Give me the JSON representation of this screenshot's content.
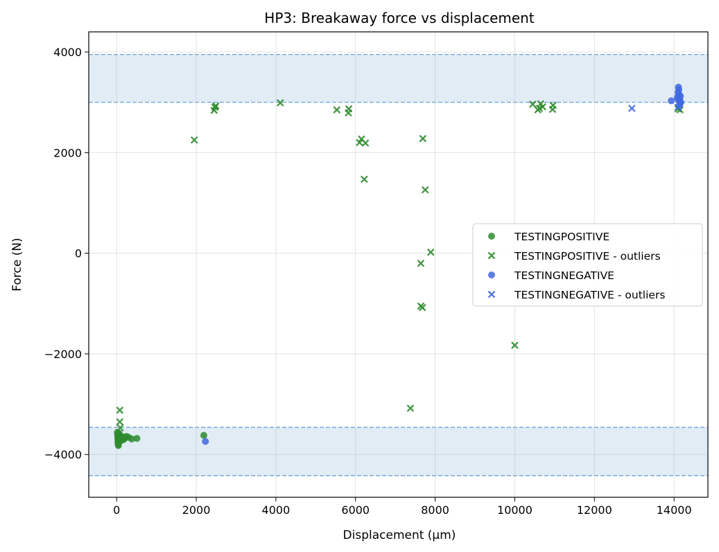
{
  "chart_data": {
    "type": "scatter",
    "title": "HP3: Breakaway force vs displacement",
    "xlabel": "Displacement (µm)",
    "ylabel": "Force (N)",
    "xlim": [
      -700,
      14850
    ],
    "ylim": [
      -4850,
      4400
    ],
    "xticks": [
      0,
      2000,
      4000,
      6000,
      8000,
      10000,
      12000,
      14000
    ],
    "yticks": [
      -4000,
      -2000,
      0,
      2000,
      4000
    ],
    "xtick_labels": [
      "0",
      "2000",
      "4000",
      "6000",
      "8000",
      "10000",
      "12000",
      "14000"
    ],
    "ytick_labels": [
      "−4000",
      "−2000",
      "0",
      "2000",
      "4000"
    ],
    "grid": true,
    "legend_position": "center-right",
    "bands": [
      {
        "lower": 3000,
        "upper": 3950,
        "color": "#cde0ee"
      },
      {
        "lower": -4420,
        "upper": -3460,
        "color": "#cde0ee"
      }
    ],
    "series": [
      {
        "name": "TESTINGPOSITIVE",
        "marker": "circle",
        "color": "#2e8b2e",
        "points": [
          [
            20,
            -3560
          ],
          [
            25,
            -3600
          ],
          [
            30,
            -3640
          ],
          [
            30,
            -3680
          ],
          [
            35,
            -3720
          ],
          [
            35,
            -3760
          ],
          [
            40,
            -3800
          ],
          [
            45,
            -3820
          ],
          [
            50,
            -3700
          ],
          [
            55,
            -3660
          ],
          [
            60,
            -3620
          ],
          [
            65,
            -3580
          ],
          [
            70,
            -3740
          ],
          [
            80,
            -3700
          ],
          [
            90,
            -3660
          ],
          [
            100,
            -3690
          ],
          [
            110,
            -3640
          ],
          [
            120,
            -3720
          ],
          [
            140,
            -3680
          ],
          [
            160,
            -3650
          ],
          [
            180,
            -3700
          ],
          [
            210,
            -3670
          ],
          [
            250,
            -3640
          ],
          [
            300,
            -3660
          ],
          [
            380,
            -3690
          ],
          [
            510,
            -3680
          ],
          [
            2190,
            -3620
          ]
        ]
      },
      {
        "name": "TESTINGPOSITIVE - outliers",
        "marker": "x",
        "color": "#2e8b2e",
        "points": [
          [
            80,
            -3120
          ],
          [
            80,
            -3350
          ],
          [
            90,
            -3470
          ],
          [
            1950,
            2250
          ],
          [
            2450,
            2840
          ],
          [
            2470,
            2900
          ],
          [
            2490,
            2930
          ],
          [
            4110,
            2990
          ],
          [
            5530,
            2850
          ],
          [
            5820,
            2790
          ],
          [
            5830,
            2870
          ],
          [
            6100,
            2200
          ],
          [
            6150,
            2270
          ],
          [
            6250,
            2190
          ],
          [
            6220,
            1470
          ],
          [
            7380,
            -3080
          ],
          [
            7640,
            -200
          ],
          [
            7640,
            -1050
          ],
          [
            7680,
            -1080
          ],
          [
            7690,
            2280
          ],
          [
            7750,
            1260
          ],
          [
            7890,
            20
          ],
          [
            10000,
            -1830
          ],
          [
            10450,
            2960
          ],
          [
            10580,
            2850
          ],
          [
            10620,
            2880
          ],
          [
            10650,
            2970
          ],
          [
            10700,
            2910
          ],
          [
            10950,
            2860
          ],
          [
            10960,
            2940
          ],
          [
            14100,
            2870
          ],
          [
            14150,
            2850
          ]
        ]
      },
      {
        "name": "TESTINGNEGATIVE",
        "marker": "circle",
        "color": "#4169e1",
        "points": [
          [
            2230,
            -3740
          ],
          [
            13930,
            3030
          ],
          [
            14080,
            3100
          ],
          [
            14100,
            3200
          ],
          [
            14110,
            3300
          ],
          [
            14120,
            3250
          ],
          [
            14130,
            3150
          ],
          [
            14140,
            3050
          ],
          [
            14150,
            2990
          ],
          [
            14160,
            3120
          ],
          [
            14170,
            3000
          ],
          [
            14140,
            2950
          ],
          [
            14100,
            3060
          ]
        ]
      },
      {
        "name": "TESTINGNEGATIVE - outliers",
        "marker": "x",
        "color": "#4169e1",
        "points": [
          [
            12940,
            2880
          ],
          [
            14100,
            2900
          ],
          [
            14130,
            2960
          ]
        ]
      }
    ]
  }
}
